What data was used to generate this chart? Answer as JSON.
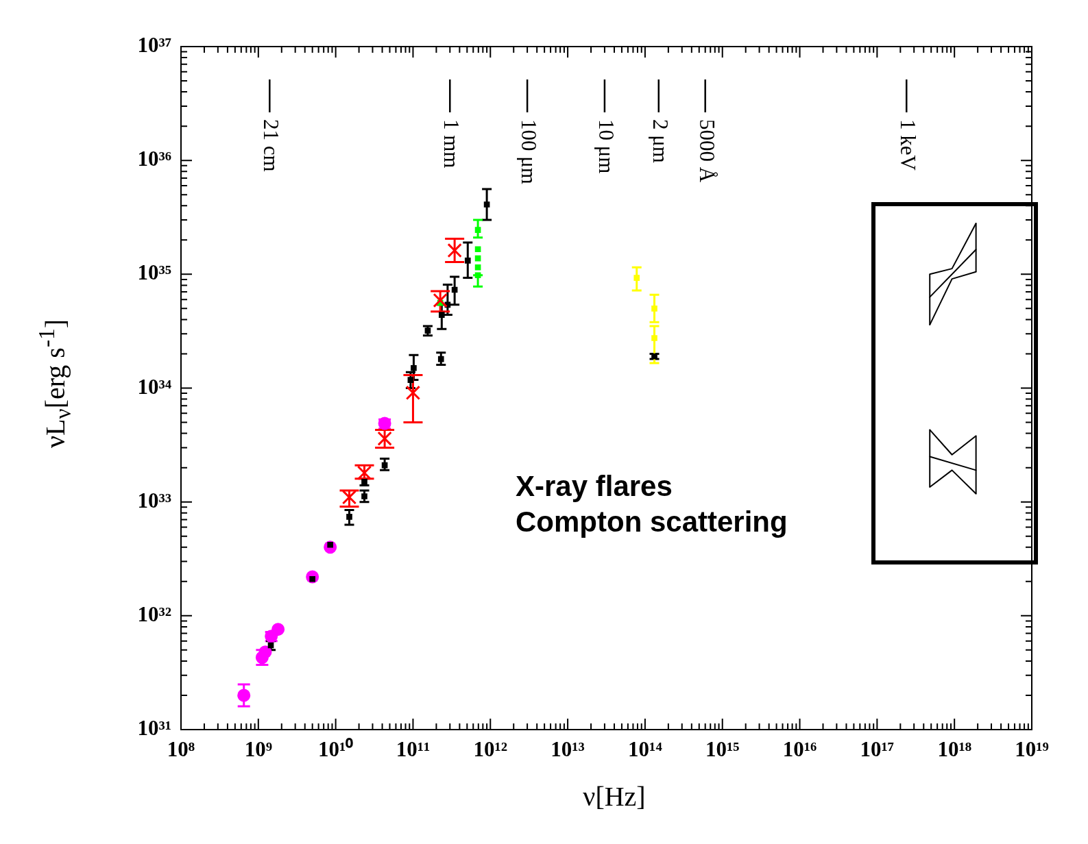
{
  "chart_data": {
    "type": "scatter",
    "log": "xy",
    "xlabel": "ν[Hz]",
    "ylabel": "νL$_{ν}$[erg s$^{-1}$]",
    "xlim": [
      100000000.0,
      1e+19
    ],
    "ylim": [
      1e+31,
      1e+37
    ],
    "xticks": [
      {
        "value": 100000000.0,
        "label": "10⁸"
      },
      {
        "value": 1000000000.0,
        "label": "10⁹"
      },
      {
        "value": 10000000000.0,
        "label": "10¹⁰"
      },
      {
        "value": 100000000000.0,
        "label": "10¹¹"
      },
      {
        "value": 1000000000000.0,
        "label": "10¹²"
      },
      {
        "value": 10000000000000.0,
        "label": "10¹³"
      },
      {
        "value": 100000000000000.0,
        "label": "10¹⁴"
      },
      {
        "value": 1000000000000000.0,
        "label": "10¹⁵"
      },
      {
        "value": 1e+16,
        "label": "10¹⁶"
      },
      {
        "value": 1e+17,
        "label": "10¹⁷"
      },
      {
        "value": 1e+18,
        "label": "10¹⁸"
      },
      {
        "value": 1e+19,
        "label": "10¹⁹"
      },
      {
        "value": 200000000.0,
        "label": null
      },
      {
        "value": 300000000.0,
        "label": null
      },
      {
        "value": 400000000.0,
        "label": null
      },
      {
        "value": 500000000.0,
        "label": null
      },
      {
        "value": 600000000.0,
        "label": null
      },
      {
        "value": 700000000.0,
        "label": null
      },
      {
        "value": 800000000.0,
        "label": null
      },
      {
        "value": 900000000.0,
        "label": null
      },
      {
        "value": 2000000000.0,
        "label": null
      },
      {
        "value": 3000000000.0,
        "label": null
      },
      {
        "value": 4000000000.0,
        "label": null
      },
      {
        "value": 5000000000.0,
        "label": null
      },
      {
        "value": 6000000000.0,
        "label": null
      },
      {
        "value": 7000000000.0,
        "label": null
      },
      {
        "value": 8000000000.0,
        "label": null
      },
      {
        "value": 9000000000.0,
        "label": null
      },
      {
        "value": 20000000000.0,
        "label": null
      },
      {
        "value": 30000000000.0,
        "label": null
      },
      {
        "value": 40000000000.0,
        "label": null
      },
      {
        "value": 50000000000.0,
        "label": null
      },
      {
        "value": 60000000000.0,
        "label": null
      },
      {
        "value": 70000000000.0,
        "label": null
      },
      {
        "value": 80000000000.0,
        "label": null
      },
      {
        "value": 90000000000.0,
        "label": null
      },
      {
        "value": 200000000000.0,
        "label": null
      },
      {
        "value": 300000000000.0,
        "label": null
      },
      {
        "value": 400000000000.0,
        "label": null
      },
      {
        "value": 500000000000.0,
        "label": null
      },
      {
        "value": 600000000000.0,
        "label": null
      },
      {
        "value": 700000000000.0,
        "label": null
      },
      {
        "value": 800000000000.0,
        "label": null
      },
      {
        "value": 900000000000.0,
        "label": null
      },
      {
        "value": 2000000000000.0,
        "label": null
      },
      {
        "value": 3000000000000.0,
        "label": null
      },
      {
        "value": 4000000000000.0,
        "label": null
      },
      {
        "value": 5000000000000.0,
        "label": null
      },
      {
        "value": 6000000000000.0,
        "label": null
      },
      {
        "value": 7000000000000.0,
        "label": null
      },
      {
        "value": 8000000000000.0,
        "label": null
      },
      {
        "value": 9000000000000.0,
        "label": null
      },
      {
        "value": 20000000000000.0,
        "label": null
      },
      {
        "value": 30000000000000.0,
        "label": null
      },
      {
        "value": 40000000000000.0,
        "label": null
      },
      {
        "value": 50000000000000.0,
        "label": null
      },
      {
        "value": 60000000000000.0,
        "label": null
      },
      {
        "value": 70000000000000.0,
        "label": null
      },
      {
        "value": 80000000000000.0,
        "label": null
      },
      {
        "value": 90000000000000.0,
        "label": null
      },
      {
        "value": 200000000000000.0,
        "label": null
      },
      {
        "value": 300000000000000.0,
        "label": null
      },
      {
        "value": 400000000000000.0,
        "label": null
      },
      {
        "value": 500000000000000.0,
        "label": null
      },
      {
        "value": 600000000000000.0,
        "label": null
      },
      {
        "value": 700000000000000.0,
        "label": null
      },
      {
        "value": 800000000000000.0,
        "label": null
      },
      {
        "value": 900000000000000.0,
        "label": null
      },
      {
        "value": 2000000000000000.0,
        "label": null
      },
      {
        "value": 3000000000000000.0,
        "label": null
      },
      {
        "value": 4000000000000000.0,
        "label": null
      },
      {
        "value": 5000000000000000.0,
        "label": null
      },
      {
        "value": 6000000000000000.0,
        "label": null
      },
      {
        "value": 7000000000000000.0,
        "label": null
      },
      {
        "value": 8000000000000000.0,
        "label": null
      },
      {
        "value": 9000000000000000.0,
        "label": null
      },
      {
        "value": 2e+16,
        "label": null
      },
      {
        "value": 3e+16,
        "label": null
      },
      {
        "value": 4e+16,
        "label": null
      },
      {
        "value": 5e+16,
        "label": null
      },
      {
        "value": 6e+16,
        "label": null
      },
      {
        "value": 7e+16,
        "label": null
      },
      {
        "value": 8e+16,
        "label": null
      },
      {
        "value": 9e+16,
        "label": null
      },
      {
        "value": 2e+17,
        "label": null
      },
      {
        "value": 3e+17,
        "label": null
      },
      {
        "value": 4e+17,
        "label": null
      },
      {
        "value": 5e+17,
        "label": null
      },
      {
        "value": 6e+17,
        "label": null
      },
      {
        "value": 7e+17,
        "label": null
      },
      {
        "value": 8e+17,
        "label": null
      },
      {
        "value": 9e+17,
        "label": null
      },
      {
        "value": 2e+18,
        "label": null
      },
      {
        "value": 3e+18,
        "label": null
      },
      {
        "value": 4e+18,
        "label": null
      },
      {
        "value": 5e+18,
        "label": null
      },
      {
        "value": 6e+18,
        "label": null
      },
      {
        "value": 7e+18,
        "label": null
      },
      {
        "value": 8e+18,
        "label": null
      },
      {
        "value": 9e+18,
        "label": null
      }
    ],
    "yticks": [
      {
        "value": 1e+31,
        "label": "10³¹"
      },
      {
        "value": 1e+32,
        "label": "10³²"
      },
      {
        "value": 1e+33,
        "label": "10³³"
      },
      {
        "value": 1e+34,
        "label": "10³⁴"
      },
      {
        "value": 1e+35,
        "label": "10³⁵"
      },
      {
        "value": 1e+36,
        "label": "10³⁶"
      },
      {
        "value": 1e+37,
        "label": "10³⁷"
      },
      {
        "value": 2e+31,
        "label": null
      },
      {
        "value": 3e+31,
        "label": null
      },
      {
        "value": 4e+31,
        "label": null
      },
      {
        "value": 5e+31,
        "label": null
      },
      {
        "value": 6e+31,
        "label": null
      },
      {
        "value": 7e+31,
        "label": null
      },
      {
        "value": 8e+31,
        "label": null
      },
      {
        "value": 9e+31,
        "label": null
      },
      {
        "value": 2e+32,
        "label": null
      },
      {
        "value": 3e+32,
        "label": null
      },
      {
        "value": 4e+32,
        "label": null
      },
      {
        "value": 5e+32,
        "label": null
      },
      {
        "value": 6e+32,
        "label": null
      },
      {
        "value": 7e+32,
        "label": null
      },
      {
        "value": 8e+32,
        "label": null
      },
      {
        "value": 9e+32,
        "label": null
      },
      {
        "value": 2e+33,
        "label": null
      },
      {
        "value": 3e+33,
        "label": null
      },
      {
        "value": 4e+33,
        "label": null
      },
      {
        "value": 5e+33,
        "label": null
      },
      {
        "value": 6e+33,
        "label": null
      },
      {
        "value": 7e+33,
        "label": null
      },
      {
        "value": 8e+33,
        "label": null
      },
      {
        "value": 9e+33,
        "label": null
      },
      {
        "value": 2e+34,
        "label": null
      },
      {
        "value": 3e+34,
        "label": null
      },
      {
        "value": 4e+34,
        "label": null
      },
      {
        "value": 5e+34,
        "label": null
      },
      {
        "value": 6e+34,
        "label": null
      },
      {
        "value": 7e+34,
        "label": null
      },
      {
        "value": 8e+34,
        "label": null
      },
      {
        "value": 9e+34,
        "label": null
      },
      {
        "value": 2e+35,
        "label": null
      },
      {
        "value": 3e+35,
        "label": null
      },
      {
        "value": 4e+35,
        "label": null
      },
      {
        "value": 5e+35,
        "label": null
      },
      {
        "value": 6e+35,
        "label": null
      },
      {
        "value": 7e+35,
        "label": null
      },
      {
        "value": 8e+35,
        "label": null
      },
      {
        "value": 9e+35,
        "label": null
      },
      {
        "value": 2e+36,
        "label": null
      },
      {
        "value": 3e+36,
        "label": null
      },
      {
        "value": 4e+36,
        "label": null
      },
      {
        "value": 5e+36,
        "label": null
      },
      {
        "value": 6e+36,
        "label": null
      },
      {
        "value": 7e+36,
        "label": null
      },
      {
        "value": 8e+36,
        "label": null
      },
      {
        "value": 9e+36,
        "label": null
      }
    ],
    "series": [
      {
        "color": "#ff00ff",
        "marker": "circle",
        "x": [
          650000000.0,
          1120000000.0,
          1230000000.0,
          1470000000.0,
          1800000000.0,
          5000000000.0,
          8500000000.0,
          43000000000.0
        ],
        "values": [
          2e+31,
          4.3e+31,
          4.8e+31,
          6.6e+31,
          7.6e+31,
          2.2e+32,
          4e+32,
          4.9e+33
        ],
        "errors": [
          [
            1.6e+31,
            2.5e+31
          ],
          [
            3.7e+31,
            5e+31
          ],
          null,
          [
            6e+31,
            7.2e+31
          ],
          null,
          null,
          null,
          [
            4.4e+33,
            5.3e+33
          ]
        ]
      },
      {
        "color": "#000000",
        "marker": "square",
        "x": [
          1450000000.0,
          5000000000.0,
          8500000000.0,
          15000000000.0,
          23500000000.0,
          23500000000.0,
          43000000000.0,
          93000000000.0,
          102000000000.0,
          155000000000.0,
          230000000000.0,
          235000000000.0,
          280000000000.0,
          345000000000.0,
          510000000000.0,
          900000000000.0,
          132000000000000.0
        ],
        "values": [
          5.5e+31,
          2.1e+32,
          4.2e+32,
          7.4e+32,
          1.12e+33,
          1.5e+33,
          2.1e+33,
          1.18e+34,
          1.5e+34,
          3.2e+34,
          1.8e+34,
          4.4e+34,
          5.4e+34,
          7.3e+34,
          1.32e+35,
          4.1e+35,
          1.9e+34
        ],
        "errors": [
          [
            5e+31,
            6e+31
          ],
          [
            2.05e+32,
            2.2e+32
          ],
          [
            4e+32,
            4.3e+32
          ],
          [
            6.3e+32,
            8.5e+32
          ],
          [
            1e+33,
            1.26e+33
          ],
          [
            1.4e+33,
            1.6e+33
          ],
          [
            1.9e+33,
            2.4e+33
          ],
          [
            1e+34,
            1.38e+34
          ],
          [
            1.18e+34,
            1.95e+34
          ],
          [
            2.9e+34,
            3.5e+34
          ],
          [
            1.6e+34,
            2.05e+34
          ],
          [
            3.3e+34,
            5.4e+34
          ],
          [
            4.4e+34,
            8.1e+34
          ],
          [
            5.4e+34,
            9.5e+34
          ],
          [
            9.3e+34,
            1.9e+35
          ],
          [
            3e+35,
            5.6e+35
          ],
          [
            1.8e+34,
            2e+34
          ]
        ]
      },
      {
        "color": "#00ff00",
        "marker": "square",
        "x": [
          225000000000.0,
          690000000000.0,
          690000000000.0,
          690000000000.0,
          690000000000.0,
          690000000000.0
        ],
        "values": [
          5.6e+34,
          2.45e+35,
          1.66e+35,
          1.38e+35,
          1.15e+35,
          9.8e+34
        ],
        "errors": [
          null,
          [
            2.1e+35,
            3e+35
          ],
          null,
          null,
          null,
          [
            7.8e+34,
            9.8e+34
          ]
        ]
      },
      {
        "color": "#ff0000",
        "marker": "cross",
        "x": [
          15000000000.0,
          23500000000.0,
          43000000000.0,
          100000000000.0,
          225000000000.0,
          345000000000.0
        ],
        "values": [
          1.1e+33,
          1.8e+33,
          3.6e+33,
          9.1e+33,
          5.9e+34,
          1.62e+35
        ],
        "errors": [
          [
            9.1e+32,
            1.26e+33
          ],
          [
            1.6e+33,
            2.1e+33
          ],
          [
            3e+33,
            4.3e+33
          ],
          [
            5e+33,
            1.3e+34
          ],
          [
            4.7e+34,
            7.1e+34
          ],
          [
            1.28e+35,
            2.05e+35
          ]
        ]
      },
      {
        "color": "#ffff00",
        "marker": "square",
        "x": [
          78000000000000.0,
          132000000000000.0,
          132000000000000.0
        ],
        "values": [
          9.3e+34,
          5e+34,
          2.75e+34
        ],
        "errors": [
          [
            7.2e+34,
            1.15e+35
          ],
          [
            3.8e+34,
            6.6e+34
          ],
          [
            1.66e+34,
            3.5e+34
          ]
        ]
      },
      {
        "type": "line",
        "color": "#000000",
        "marker": "none",
        "x": [
          4.8e+17,
          9.3e+17,
          1.9e+18
        ],
        "values": [
          1e+35,
          1.12e+35,
          2.8e+35
        ]
      },
      {
        "type": "line",
        "color": "#000000",
        "marker": "none",
        "x": [
          4.8e+17,
          9.3e+17,
          1.9e+18
        ],
        "values": [
          3.6e+34,
          9.1e+34,
          1.05e+35
        ]
      },
      {
        "type": "line",
        "color": "#000000",
        "marker": "none",
        "x": [
          4.8e+17,
          1.9e+18
        ],
        "values": [
          6.3e+34,
          1.65e+35
        ],
        "errors": [
          [
            3.6e+34,
            1e+35
          ],
          [
            1.05e+35,
            2.8e+35
          ]
        ]
      },
      {
        "type": "line",
        "color": "#000000",
        "marker": "none",
        "x": [
          4.8e+17,
          9.3e+17,
          1.9e+18
        ],
        "values": [
          4.3e+33,
          2.6e+33,
          3.8e+33
        ]
      },
      {
        "type": "line",
        "color": "#000000",
        "marker": "none",
        "x": [
          4.8e+17,
          9.3e+17,
          1.9e+18
        ],
        "values": [
          1.35e+33,
          1.9e+33,
          1.18e+33
        ]
      },
      {
        "type": "line",
        "color": "#000000",
        "marker": "none",
        "x": [
          4.8e+17,
          1.9e+18
        ],
        "values": [
          2.5e+33,
          1.9e+33
        ],
        "errors": [
          [
            1.35e+33,
            4.3e+33
          ],
          [
            1.18e+33,
            3.8e+33
          ]
        ]
      }
    ],
    "ref_lines": [
      {
        "axis": "x",
        "value": 1400000000.0,
        "label": "21 cm"
      },
      {
        "axis": "x",
        "value": 300000000000.0,
        "label": "1 mm"
      },
      {
        "axis": "x",
        "value": 3000000000000.0,
        "label": "100 μm"
      },
      {
        "axis": "x",
        "value": 30000000000000.0,
        "label": "10 μm"
      },
      {
        "axis": "x",
        "value": 150000000000000.0,
        "label": "2 μm"
      },
      {
        "axis": "x",
        "value": 600000000000000.0,
        "label": "5000 Å"
      },
      {
        "axis": "x",
        "value": 2.4e+17,
        "label": "1 keV"
      }
    ],
    "annotations": [
      "X-ray flares",
      "Compton scattering"
    ]
  }
}
